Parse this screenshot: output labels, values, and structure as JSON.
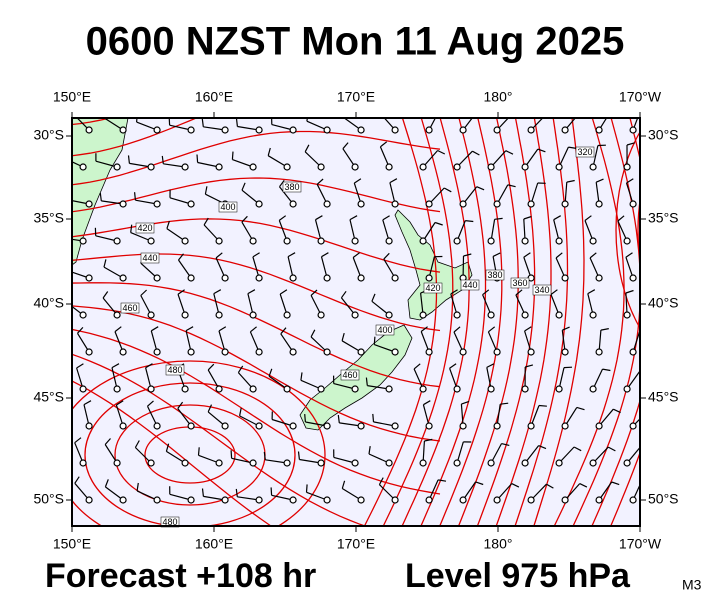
{
  "title": "0600 NZST Mon 11 Aug 2025",
  "map": {
    "lon_labels": [
      "150°E",
      "160°E",
      "170°E",
      "180°",
      "170°W"
    ],
    "lat_labels": [
      "30°S",
      "35°S",
      "40°S",
      "45°S",
      "50°S"
    ],
    "contour_labels": [
      "380",
      "400",
      "420",
      "440",
      "460",
      "480",
      "480",
      "420",
      "440",
      "400",
      "460",
      "380",
      "360",
      "340",
      "320"
    ]
  },
  "footer": {
    "forecast": "Forecast +108 hr",
    "level": "Level 975 hPa",
    "model": "M3"
  }
}
